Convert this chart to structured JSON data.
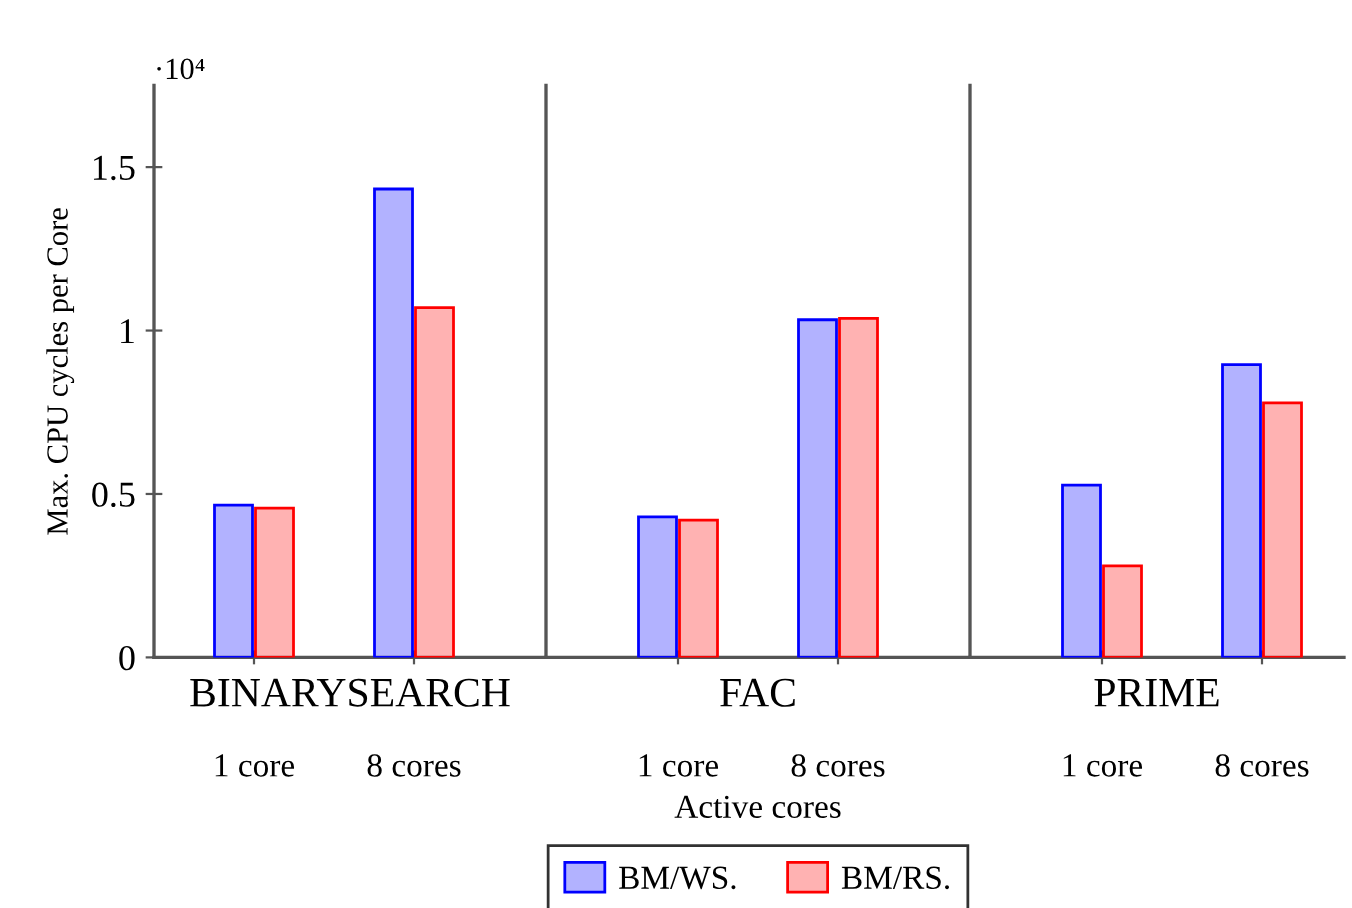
{
  "chart_data": [
    {
      "type": "bar",
      "ylabel": "Max. CPU cycles per Core",
      "annotations": [
        "·10⁴",
        "BINARYSEARCH"
      ],
      "categories": [
        "1 core",
        "8 cores"
      ],
      "series": [
        {
          "color": "#0000ff",
          "values": [
            0.466,
            1.433
          ]
        },
        {
          "color": "#ff0000",
          "values": [
            0.457,
            1.07
          ]
        }
      ],
      "ylim": [
        0,
        1.75
      ],
      "yticks": [
        0,
        0.5,
        1,
        1.5
      ]
    },
    {
      "type": "bar",
      "xlabel": "Active cores",
      "annotations": [
        "FAC"
      ],
      "categories": [
        "1 core",
        "8 cores"
      ],
      "series": [
        {
          "name": "BM/WS.",
          "color": "#0000ff",
          "values": [
            0.43,
            1.033
          ]
        },
        {
          "name": "BM/RS.",
          "color": "#ff0000",
          "values": [
            0.42,
            1.037
          ]
        }
      ],
      "ylim": [
        0,
        1.75
      ],
      "tick_labels": "x",
      "legend": "bottom"
    },
    {
      "type": "bar",
      "annotations": [
        "PRIME"
      ],
      "categories": [
        "1 core",
        "8 cores"
      ],
      "series": [
        {
          "color": "#0000ff",
          "values": [
            0.527,
            0.896
          ]
        },
        {
          "color": "#ff0000",
          "values": [
            0.28,
            0.779
          ]
        }
      ],
      "ylim": [
        0,
        1.75
      ],
      "tick_labels": "x"
    }
  ]
}
